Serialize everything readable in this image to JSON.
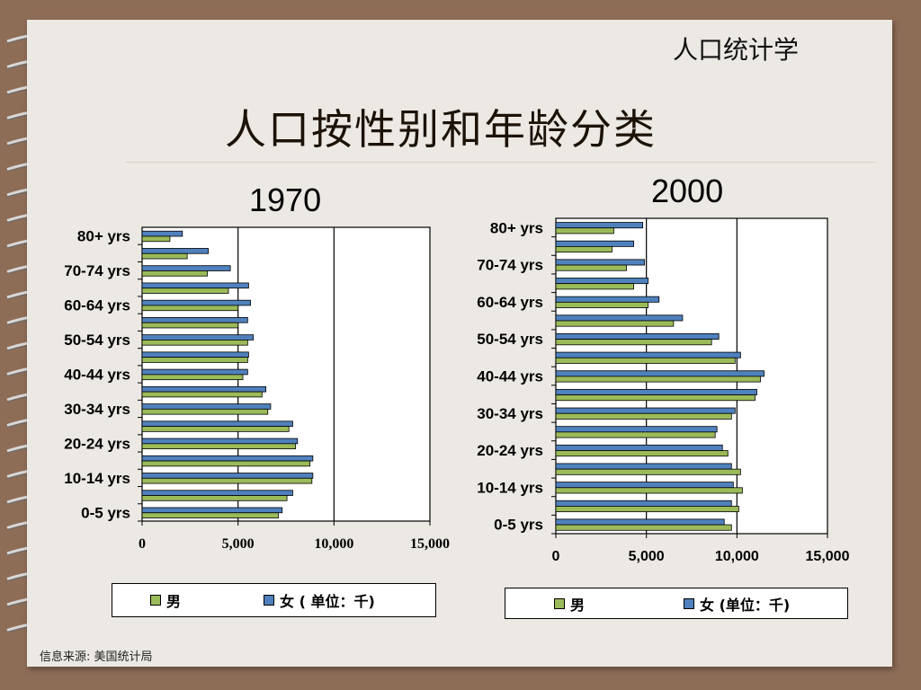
{
  "slide": {
    "subtitle": "人口统计学",
    "title": "人口按性别和年龄分类",
    "source": "信息来源: 美国统计局"
  },
  "colors": {
    "male": "#9bbb59",
    "female": "#4f81bd",
    "page": "#ece8e3",
    "frame": "#8e6d57"
  },
  "chart_data": [
    {
      "type": "bar",
      "orientation": "horizontal",
      "title": "1970",
      "categories": [
        "0-5 yrs",
        "",
        "10-14 yrs",
        "",
        "20-24 yrs",
        "",
        "30-34 yrs",
        "",
        "40-44 yrs",
        "",
        "50-54 yrs",
        "",
        "60-64 yrs",
        "",
        "70-74 yrs",
        "",
        "80+ yrs"
      ],
      "series": [
        {
          "name": "男",
          "values": [
            7100,
            7550,
            8850,
            8750,
            8000,
            7650,
            6550,
            6250,
            5250,
            5500,
            5500,
            5000,
            5000,
            4500,
            3400,
            2350,
            1450
          ]
        },
        {
          "name": "女 ( 单位：千)",
          "values": [
            7300,
            7850,
            8900,
            8900,
            8100,
            7850,
            6700,
            6450,
            5500,
            5550,
            5800,
            5500,
            5650,
            5550,
            4600,
            3450,
            2100
          ]
        }
      ],
      "xlim": [
        0,
        15000
      ],
      "xticks": [
        "0",
        "5,000",
        "10,000",
        "15,000"
      ],
      "legend": "bottom"
    },
    {
      "type": "bar",
      "orientation": "horizontal",
      "title": "2000",
      "categories": [
        "0-5 yrs",
        "",
        "10-14 yrs",
        "",
        "20-24 yrs",
        "",
        "30-34 yrs",
        "",
        "40-44 yrs",
        "",
        "50-54 yrs",
        "",
        "60-64 yrs",
        "",
        "70-74 yrs",
        "",
        "80+ yrs"
      ],
      "series": [
        {
          "name": "男",
          "values": [
            9700,
            10100,
            10300,
            10200,
            9500,
            8800,
            9700,
            11000,
            11300,
            9900,
            8600,
            6500,
            5100,
            4300,
            3900,
            3100,
            3200
          ]
        },
        {
          "name": "女 (单位：千)",
          "values": [
            9300,
            9700,
            9800,
            9700,
            9200,
            8900,
            9900,
            11100,
            11500,
            10200,
            9000,
            7000,
            5700,
            5100,
            4900,
            4300,
            4800
          ]
        }
      ],
      "xlim": [
        0,
        15000
      ],
      "xticks": [
        "0",
        "5,000",
        "10,000",
        "15,000"
      ],
      "legend": "bottom"
    }
  ]
}
